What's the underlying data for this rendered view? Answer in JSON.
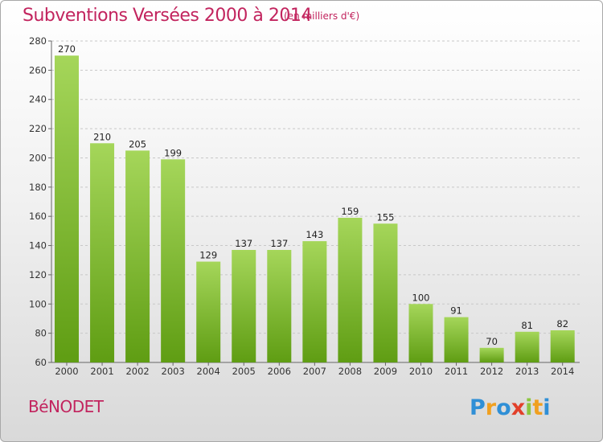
{
  "header": {
    "title": "Subventions Versées 2000 à 2014",
    "subtitle": "(en milliers d'€)"
  },
  "footer": {
    "commune": "BéNODET",
    "logo_text": "Proxiti"
  },
  "colors": {
    "title": "#c2245e",
    "bar_top": "#a5d65a",
    "bar_bottom": "#5f9d13"
  },
  "chart_data": {
    "type": "bar",
    "categories": [
      "2000",
      "2001",
      "2002",
      "2003",
      "2004",
      "2005",
      "2006",
      "2007",
      "2008",
      "2009",
      "2010",
      "2011",
      "2012",
      "2013",
      "2014"
    ],
    "values": [
      270,
      210,
      205,
      199,
      129,
      137,
      137,
      143,
      159,
      155,
      100,
      91,
      70,
      81,
      82
    ],
    "title": "Subventions Versées 2000 à 2014",
    "subtitle": "(en milliers d'€)",
    "ylim": [
      60,
      280
    ],
    "yticks": [
      60,
      80,
      100,
      120,
      140,
      160,
      180,
      200,
      220,
      240,
      260,
      280
    ],
    "grid": true,
    "data_labels": true
  }
}
